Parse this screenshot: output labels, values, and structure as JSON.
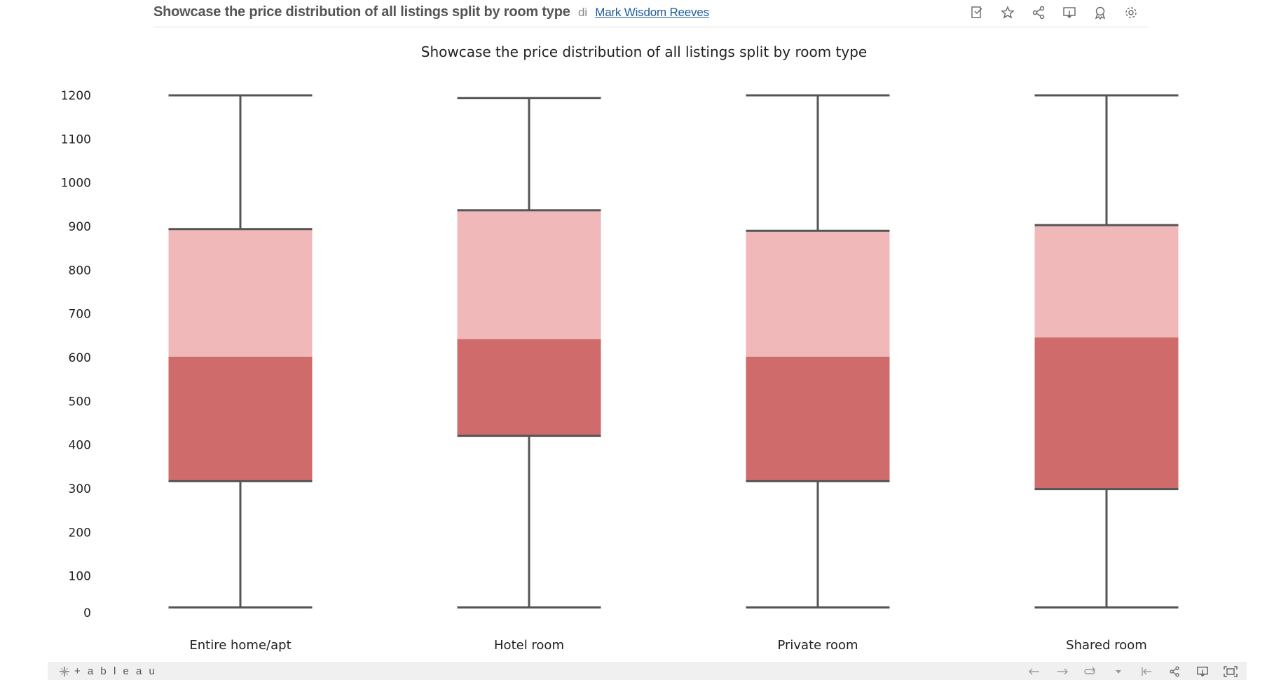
{
  "header": {
    "title": "Showcase the price distribution of all listings split by room type",
    "by": "di",
    "author": "Mark Wisdom Reeves",
    "icons": [
      "edit-icon",
      "star-icon",
      "share-icon",
      "download-icon",
      "badge-icon",
      "gear-icon"
    ]
  },
  "toolbar": {
    "logo_text": "+ a b l e a u",
    "icons": [
      "undo-icon",
      "redo-icon",
      "revert-icon",
      "dropdown-icon",
      "reset-icon",
      "share-icon",
      "download-icon",
      "fullscreen-icon"
    ]
  },
  "chart_data": {
    "type": "boxplot",
    "title": "Showcase the price distribution of all listings split by room type",
    "xlabel": "",
    "ylabel": "",
    "ylim": [
      0,
      1200
    ],
    "y_ticks": [
      0,
      100,
      200,
      300,
      400,
      500,
      600,
      700,
      800,
      900,
      1000,
      1100,
      1200
    ],
    "grid": false,
    "colors": {
      "lower_box": "#d06b6b",
      "upper_box": "#f0b8b8",
      "whisker": "#555555"
    },
    "categories": [
      "Entire home/apt",
      "Hotel room",
      "Private room",
      "Shared room"
    ],
    "boxes": [
      {
        "category": "Entire home/apt",
        "min": 28,
        "q1": 317,
        "median": 602,
        "q3": 894,
        "max": 1200
      },
      {
        "category": "Hotel room",
        "min": 28,
        "q1": 421,
        "median": 642,
        "q3": 937,
        "max": 1194
      },
      {
        "category": "Private room",
        "min": 28,
        "q1": 317,
        "median": 602,
        "q3": 890,
        "max": 1200
      },
      {
        "category": "Shared room",
        "min": 28,
        "q1": 299,
        "median": 646,
        "q3": 903,
        "max": 1200
      }
    ]
  }
}
